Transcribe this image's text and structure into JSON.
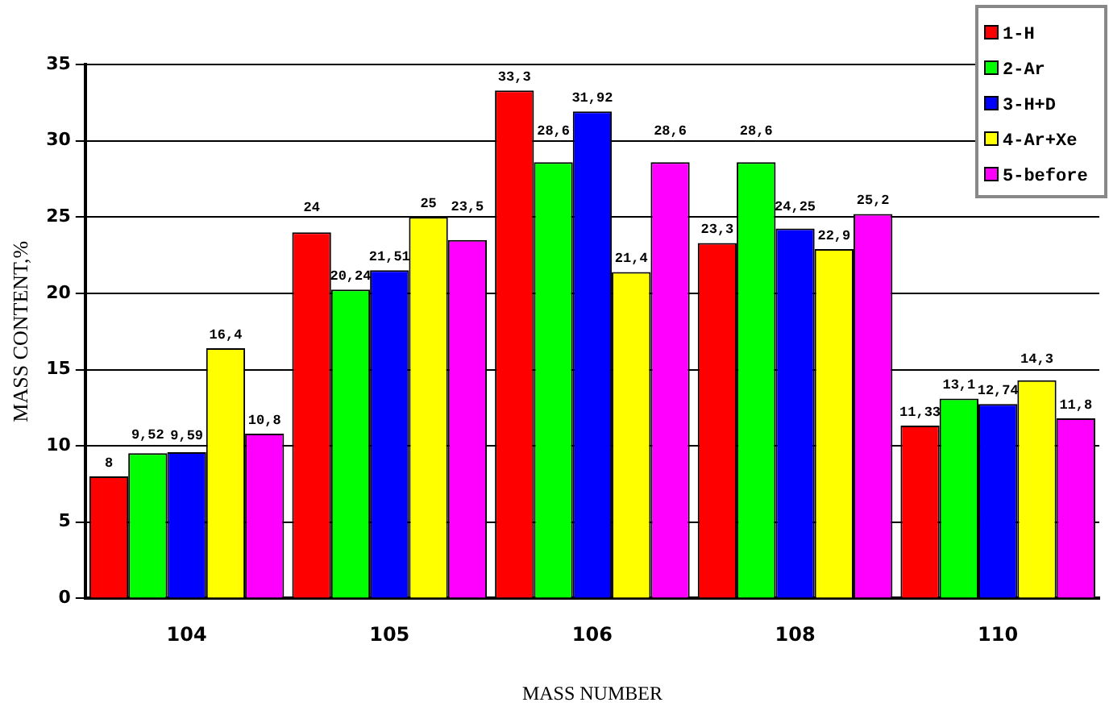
{
  "chart_data": {
    "type": "bar",
    "xlabel": "MASS NUMBER",
    "ylabel": "MASS CONTENT,%",
    "categories": [
      "104",
      "105",
      "106",
      "108",
      "110"
    ],
    "series": [
      {
        "name": "1-H",
        "color": "#ff0000",
        "values": [
          8,
          24,
          33.3,
          23.3,
          11.33
        ],
        "value_labels": [
          "8",
          "24",
          "33,3",
          "23,3",
          "11,33"
        ]
      },
      {
        "name": "2-Ar",
        "color": "#00ff00",
        "values": [
          9.52,
          20.24,
          28.6,
          28.6,
          13.1
        ],
        "value_labels": [
          "9,52",
          "20,24",
          "28,6",
          "28,6",
          "13,1"
        ]
      },
      {
        "name": "3-H+D",
        "color": "#0000ff",
        "values": [
          9.59,
          21.51,
          31.92,
          24.25,
          12.74
        ],
        "value_labels": [
          "9,59",
          "21,51",
          "31,92",
          "24,25",
          "12,74"
        ]
      },
      {
        "name": "4-Ar+Xe",
        "color": "#ffff00",
        "values": [
          16.4,
          25,
          21.4,
          22.9,
          14.3
        ],
        "value_labels": [
          "16,4",
          "25",
          "21,4",
          "22,9",
          "14,3"
        ]
      },
      {
        "name": "5-before",
        "color": "#ff00ff",
        "values": [
          10.8,
          23.5,
          28.6,
          25.2,
          11.8
        ],
        "value_labels": [
          "10,8",
          "23,5",
          "28,6",
          "25,2",
          "11,8"
        ]
      }
    ],
    "ylim": [
      0,
      35
    ],
    "yticks": [
      0,
      5,
      10,
      15,
      20,
      25,
      30,
      35
    ],
    "grid": "y",
    "legend": "top right"
  }
}
